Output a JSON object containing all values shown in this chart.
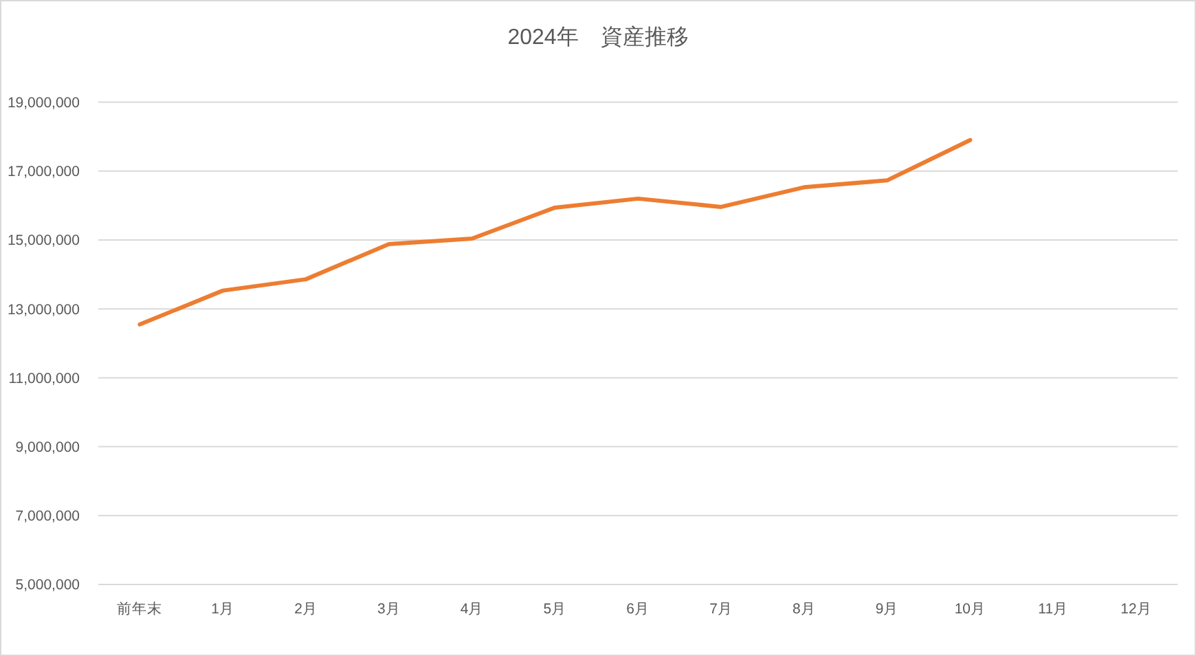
{
  "chart_data": {
    "type": "line",
    "title": "2024年　資産推移",
    "categories": [
      "前年末",
      "1月",
      "2月",
      "3月",
      "4月",
      "5月",
      "6月",
      "7月",
      "8月",
      "9月",
      "10月",
      "11月",
      "12月"
    ],
    "series": [
      {
        "color": "#ed7d31",
        "values": [
          12550000,
          13530000,
          13860000,
          14880000,
          15040000,
          15940000,
          16200000,
          15960000,
          16530000,
          16730000,
          17900000,
          null,
          null
        ]
      }
    ],
    "ylim": [
      5000000,
      19000000
    ],
    "yticks": [
      {
        "value": 5000000,
        "label": "5,000,000"
      },
      {
        "value": 7000000,
        "label": "7,000,000"
      },
      {
        "value": 9000000,
        "label": "9,000,000"
      },
      {
        "value": 11000000,
        "label": "11,000,000"
      },
      {
        "value": 13000000,
        "label": "13,000,000"
      },
      {
        "value": 15000000,
        "label": "15,000,000"
      },
      {
        "value": 17000000,
        "label": "17,000,000"
      },
      {
        "value": 19000000,
        "label": "19,000,000"
      }
    ],
    "grid": "y"
  }
}
